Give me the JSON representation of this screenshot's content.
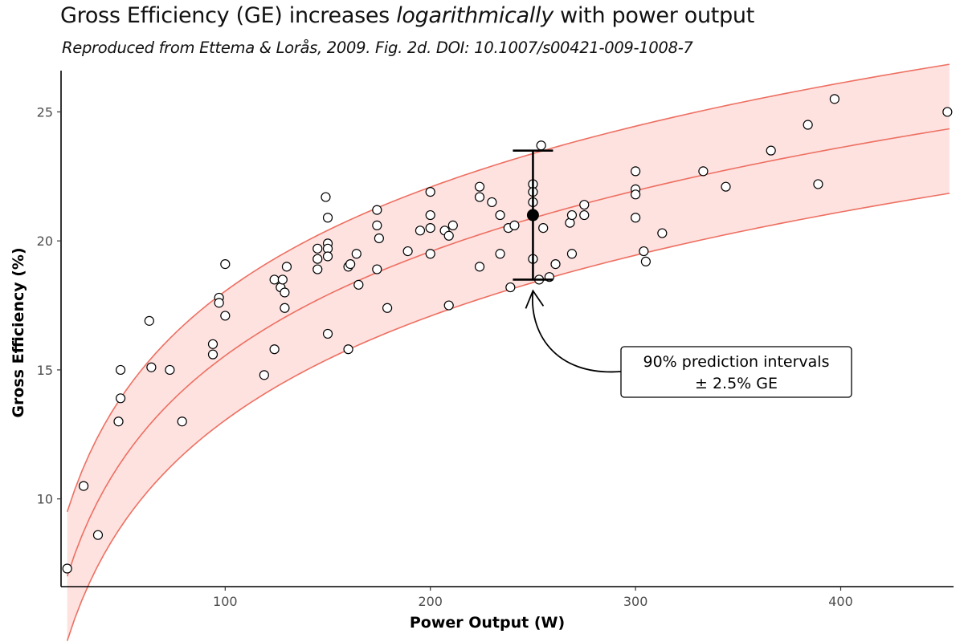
{
  "title": {
    "prefix": "Gross Efficiency (GE) increases ",
    "emphasis": "logarithmically",
    "suffix": " with power output"
  },
  "subtitle": "Reproduced from Ettema & Lorås, 2009. Fig. 2d. DOI: 10.1007/s00421-009-1008-7",
  "chart_data": {
    "type": "scatter",
    "title": "Gross Efficiency (GE) increases logarithmically with power output",
    "subtitle": "Reproduced from Ettema & Lorås, 2009. Fig. 2d. DOI: 10.1007/s00421-009-1008-7",
    "xlabel": "Power Output (W)",
    "ylabel": "Gross Efficiency (%)",
    "xlim": [
      20,
      455
    ],
    "ylim": [
      6.6,
      26.6
    ],
    "x_ticks": [
      100,
      200,
      300,
      400
    ],
    "y_ticks": [
      10,
      15,
      20,
      25
    ],
    "grid": false,
    "colors": {
      "curve": "#ee6f61",
      "band_fill": "#fde2e0",
      "point_stroke": "#000000",
      "point_fill": "#ffffff",
      "annotation": "#000000"
    },
    "fit": {
      "model": "GE = a + b * ln(power)",
      "a": -11.25,
      "b": 5.82,
      "interval_halfwidth": 2.5,
      "x_range": [
        23,
        453
      ]
    },
    "series": [
      {
        "name": "fit",
        "kind": "line"
      },
      {
        "name": "90% prediction interval upper",
        "kind": "line"
      },
      {
        "name": "90% prediction interval lower",
        "kind": "line"
      },
      {
        "name": "observations",
        "kind": "scatter",
        "points": [
          [
            23,
            7.3
          ],
          [
            31,
            10.5
          ],
          [
            38,
            8.6
          ],
          [
            48,
            13
          ],
          [
            49,
            13.9
          ],
          [
            49,
            15
          ],
          [
            63,
            16.9
          ],
          [
            64,
            15.1
          ],
          [
            73,
            15
          ],
          [
            79,
            13
          ],
          [
            94,
            16
          ],
          [
            94,
            15.6
          ],
          [
            97,
            17.8
          ],
          [
            97,
            17.6
          ],
          [
            100,
            19.1
          ],
          [
            100,
            17.1
          ],
          [
            119,
            14.8
          ],
          [
            124,
            15.8
          ],
          [
            124,
            18.5
          ],
          [
            127,
            18.2
          ],
          [
            128,
            18.5
          ],
          [
            129,
            18
          ],
          [
            129,
            17.4
          ],
          [
            130,
            19
          ],
          [
            145,
            19.7
          ],
          [
            145,
            19.3
          ],
          [
            145,
            18.9
          ],
          [
            149,
            21.7
          ],
          [
            150,
            19.9
          ],
          [
            150,
            19.7
          ],
          [
            150,
            19.4
          ],
          [
            150,
            16.4
          ],
          [
            150,
            20.9
          ],
          [
            160,
            15.8
          ],
          [
            160,
            19
          ],
          [
            161,
            19.1
          ],
          [
            164,
            19.5
          ],
          [
            165,
            18.3
          ],
          [
            174,
            21.2
          ],
          [
            174,
            20.6
          ],
          [
            174,
            18.9
          ],
          [
            175,
            20.1
          ],
          [
            179,
            17.4
          ],
          [
            189,
            19.6
          ],
          [
            195,
            20.4
          ],
          [
            200,
            21.9
          ],
          [
            200,
            21
          ],
          [
            200,
            20.5
          ],
          [
            200,
            19.5
          ],
          [
            207,
            20.4
          ],
          [
            209,
            20.2
          ],
          [
            209,
            17.5
          ],
          [
            211,
            20.6
          ],
          [
            224,
            22.1
          ],
          [
            224,
            21.7
          ],
          [
            224,
            19
          ],
          [
            230,
            21.5
          ],
          [
            234,
            21
          ],
          [
            234,
            19.5
          ],
          [
            238,
            20.5
          ],
          [
            239,
            18.2
          ],
          [
            241,
            20.6
          ],
          [
            250,
            22.2
          ],
          [
            250,
            21.9
          ],
          [
            250,
            21.5
          ],
          [
            250,
            19.3
          ],
          [
            253,
            18.5
          ],
          [
            254,
            23.7
          ],
          [
            255,
            20.5
          ],
          [
            258,
            18.6
          ],
          [
            261,
            19.1
          ],
          [
            268,
            20.7
          ],
          [
            269,
            21
          ],
          [
            269,
            19.5
          ],
          [
            275,
            21.4
          ],
          [
            275,
            21
          ],
          [
            300,
            22.7
          ],
          [
            300,
            22
          ],
          [
            300,
            21.8
          ],
          [
            300,
            20.9
          ],
          [
            304,
            19.6
          ],
          [
            305,
            19.2
          ],
          [
            313,
            20.3
          ],
          [
            333,
            22.7
          ],
          [
            344,
            22.1
          ],
          [
            366,
            23.5
          ],
          [
            384,
            24.5
          ],
          [
            389,
            22.2
          ],
          [
            397,
            25.5
          ],
          [
            452,
            25
          ]
        ]
      },
      {
        "name": "highlighted prediction",
        "kind": "errorbar",
        "x": 250,
        "y": 21,
        "ymin": 18.5,
        "ymax": 23.5
      }
    ],
    "annotations": [
      {
        "line1": "90% prediction intervals",
        "line2": "± 2.5% GE",
        "points_to": [
          250,
          18.5
        ]
      }
    ]
  }
}
